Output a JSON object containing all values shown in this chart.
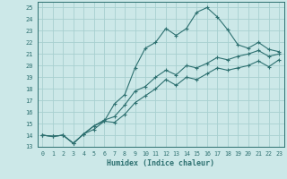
{
  "title": "",
  "xlabel": "Humidex (Indice chaleur)",
  "ylabel": "",
  "xlim": [
    -0.5,
    23.5
  ],
  "ylim": [
    13,
    25.5
  ],
  "yticks": [
    13,
    14,
    15,
    16,
    17,
    18,
    19,
    20,
    21,
    22,
    23,
    24,
    25
  ],
  "xticks": [
    0,
    1,
    2,
    3,
    4,
    5,
    6,
    7,
    8,
    9,
    10,
    11,
    12,
    13,
    14,
    15,
    16,
    17,
    18,
    19,
    20,
    21,
    22,
    23
  ],
  "xtick_labels": [
    "0",
    "1",
    "2",
    "3",
    "4",
    "5",
    "6",
    "7",
    "8",
    "9",
    "10",
    "11",
    "12",
    "13",
    "14",
    "15",
    "16",
    "17",
    "18",
    "19",
    "20",
    "21",
    "22",
    "23"
  ],
  "background_color": "#cce8e8",
  "grid_color": "#a8d0d0",
  "line_color": "#2d7070",
  "series1_y": [
    14.0,
    13.9,
    14.0,
    13.3,
    14.1,
    14.5,
    15.2,
    16.7,
    17.5,
    19.8,
    21.5,
    22.0,
    23.2,
    22.6,
    23.2,
    24.6,
    25.0,
    24.2,
    23.1,
    21.8,
    21.5,
    22.0,
    21.4,
    21.2
  ],
  "series2_y": [
    14.0,
    13.9,
    14.0,
    13.3,
    14.1,
    14.8,
    15.3,
    15.6,
    16.6,
    17.8,
    18.2,
    19.0,
    19.6,
    19.2,
    20.0,
    19.8,
    20.2,
    20.7,
    20.5,
    20.8,
    21.0,
    21.3,
    20.8,
    21.0
  ],
  "series3_y": [
    14.0,
    13.9,
    14.0,
    13.3,
    14.1,
    14.8,
    15.2,
    15.1,
    15.8,
    16.8,
    17.4,
    18.0,
    18.8,
    18.3,
    19.0,
    18.8,
    19.3,
    19.8,
    19.6,
    19.8,
    20.0,
    20.4,
    19.9,
    20.5
  ]
}
